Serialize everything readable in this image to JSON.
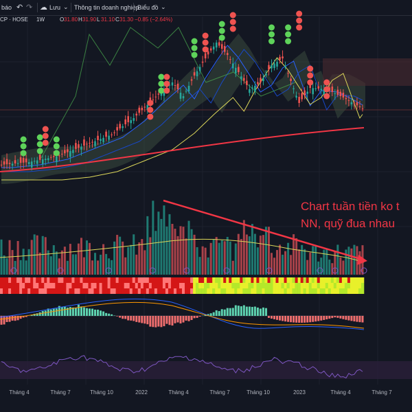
{
  "toolbar": {
    "left_label": "báo",
    "undo_icon": "undo-icon",
    "redo_icon": "redo-icon",
    "cloud_icon": "cloud-icon",
    "save_label": "Lưu",
    "save_dropdown_icon": "chevron-down-icon",
    "company_info_label": "Thông tin doanh nghiệp",
    "chart_label": "Biểu đồ",
    "chart_dropdown_icon": "chevron-down-icon"
  },
  "legend": {
    "symbol": "CP · HOSE",
    "interval": "1W",
    "open_label": "O",
    "open": "31.80",
    "high_label": "H",
    "high": "31.90",
    "low_label": "L",
    "low": "31.10",
    "close_label": "C",
    "close": "31.30",
    "change": "−0.85 (−2.64%)",
    "change_color": "#f23645"
  },
  "annotation": {
    "line1": "Chart tuần tiền ko t",
    "line2": "NN, quỹ đua nhau",
    "color": "#f23645"
  },
  "chart_data": {
    "type": "candlestick",
    "x_ticks": [
      "Tháng 4",
      "Tháng 7",
      "Tháng 10",
      "2022",
      "Tháng 4",
      "Tháng 7",
      "Tháng 10",
      "2023",
      "Tháng 4",
      "Tháng 7"
    ],
    "colors": {
      "up": "#26a69a",
      "down": "#ef5350",
      "volume_up": "#1f7a72",
      "volume_down": "#a8424a",
      "ma_long": "#f23645",
      "ma_yellow": "#ddd85a",
      "ma_blue": "#2962ff",
      "ichimoku_cloud": "#3a4a3e",
      "buy_dot": "#5ed35a",
      "sell_dot": "#ef5350"
    },
    "panes": [
      "price",
      "volume",
      "heat-strip",
      "macd",
      "oscillator"
    ]
  }
}
